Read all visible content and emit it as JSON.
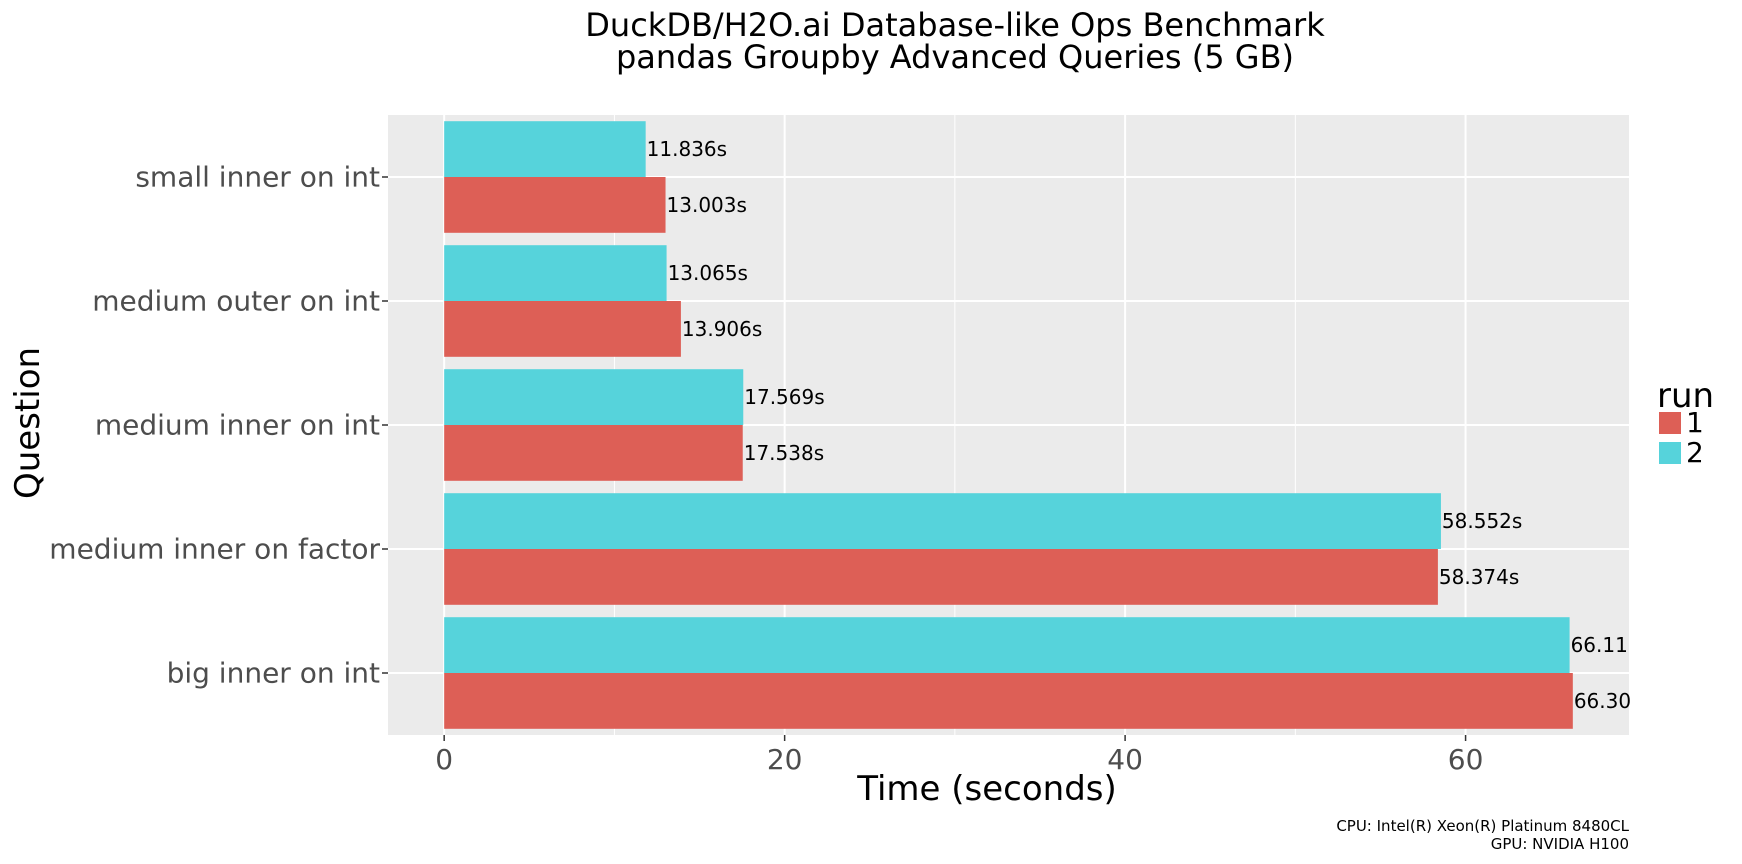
{
  "chart_data": {
    "type": "bar",
    "orientation": "horizontal",
    "title_lines": [
      "DuckDB/H2O.ai Database-like Ops Benchmark",
      "pandas Groupby Advanced Queries (5 GB)"
    ],
    "xlabel": "Time (seconds)",
    "ylabel": "Question",
    "categories": [
      "small inner on int",
      "medium outer on int",
      "medium inner on int",
      "medium inner on factor",
      "big inner on int"
    ],
    "series": [
      {
        "name": "1",
        "color": "#DD5F56",
        "values": [
          13.003,
          13.906,
          17.538,
          58.374,
          66.3
        ],
        "labels": [
          "13.003s",
          "13.906s",
          "17.538s",
          "58.374s",
          "66.30"
        ]
      },
      {
        "name": "2",
        "color": "#56D3DB",
        "values": [
          11.836,
          13.065,
          17.569,
          58.552,
          66.11
        ],
        "labels": [
          "11.836s",
          "13.065s",
          "17.569s",
          "58.552s",
          "66.11"
        ]
      }
    ],
    "xlim": [
      -3.3,
      69.6
    ],
    "xticks": [
      0,
      20,
      40,
      60
    ],
    "xtick_labels": [
      "0",
      "20",
      "40",
      "60"
    ],
    "legend": {
      "title": "run",
      "position": "right"
    },
    "grid": true,
    "panel_background": "#EBEBEB"
  },
  "caption_lines": [
    "CPU: Intel(R) Xeon(R) Platinum 8480CL",
    "GPU: NVIDIA H100"
  ]
}
